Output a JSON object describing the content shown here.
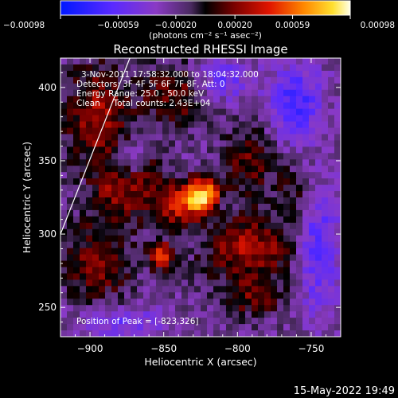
{
  "chart_data": {
    "type": "heatmap",
    "title": "Reconstructed RHESSI Image",
    "xlabel": "Heliocentric X (arcsec)",
    "ylabel": "Heliocentric Y (arcsec)",
    "xlim": [
      -920,
      -730
    ],
    "ylim": [
      230,
      420
    ],
    "x_ticks": [
      -900,
      -850,
      -800,
      -750
    ],
    "y_ticks": [
      250,
      300,
      350,
      400
    ],
    "colorbar": {
      "range": [
        -0.00098,
        0.00098
      ],
      "tick_values": [
        -0.00098,
        -0.00059,
        -0.0002,
        0.0002,
        0.00059,
        0.00098
      ],
      "tick_labels": [
        "-0.00098",
        "-0.00059",
        "-0.00020",
        "0.00020",
        "0.00059",
        "0.00098"
      ],
      "unit_label": "(photons cm⁻² s⁻¹ asec⁻²)"
    },
    "annotations": [
      "3-Nov-2011 17:58:32.000 to 18:04:32.000",
      "Detectors: 3F 4F 5F 6F 7F 8F, Att: 0",
      "Energy Range: 25.0 - 50.0 keV",
      "Clean     Total counts: 2.43E+04"
    ],
    "peak_label": "Position of Peak = [-823,326]",
    "peak": [
      -823,
      326
    ],
    "sources": [
      {
        "x": -823,
        "y": 326,
        "sx": 9,
        "sy": 8,
        "amp": 0.00098
      },
      {
        "x": -843,
        "y": 320,
        "sx": 14,
        "sy": 11,
        "amp": 0.00055
      },
      {
        "x": -852,
        "y": 285,
        "sx": 6,
        "sy": 6,
        "amp": 0.00078
      },
      {
        "x": -792,
        "y": 290,
        "sx": 22,
        "sy": 18,
        "amp": 0.0005
      },
      {
        "x": -895,
        "y": 380,
        "sx": 16,
        "sy": 26,
        "amp": 0.00048
      },
      {
        "x": -842,
        "y": 395,
        "sx": 16,
        "sy": 14,
        "amp": 0.0004
      },
      {
        "x": -792,
        "y": 350,
        "sx": 12,
        "sy": 16,
        "amp": 0.00035
      },
      {
        "x": -895,
        "y": 280,
        "sx": 16,
        "sy": 22,
        "amp": 0.0004
      },
      {
        "x": -880,
        "y": 330,
        "sx": 12,
        "sy": 14,
        "amp": 0.0004
      },
      {
        "x": -790,
        "y": 255,
        "sx": 14,
        "sy": 8,
        "amp": 0.0003
      },
      {
        "x": -760,
        "y": 330,
        "sx": 10,
        "sy": 14,
        "amp": 0.00024
      },
      {
        "x": -862,
        "y": 345,
        "sx": 8,
        "sy": 8,
        "amp": 0.00035
      },
      {
        "x": -760,
        "y": 390,
        "sx": 12,
        "sy": 18,
        "amp": -0.0005
      },
      {
        "x": -745,
        "y": 290,
        "sx": 10,
        "sy": 30,
        "amp": -0.00045
      },
      {
        "x": -810,
        "y": 405,
        "sx": 14,
        "sy": 10,
        "amp": -0.00035
      },
      {
        "x": -870,
        "y": 350,
        "sx": 8,
        "sy": 8,
        "amp": -0.0004
      },
      {
        "x": -880,
        "y": 240,
        "sx": 20,
        "sy": 8,
        "amp": -0.00035
      },
      {
        "x": -810,
        "y": 320,
        "sx": 6,
        "sy": 6,
        "amp": -0.00025
      }
    ],
    "limb_line": [
      [
        -920,
        300
      ],
      [
        -873,
        420
      ]
    ]
  },
  "footer": {
    "timestamp": "15-May-2022 19:49"
  }
}
